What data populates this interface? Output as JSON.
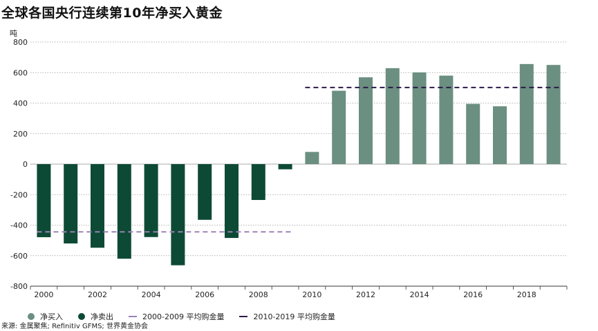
{
  "title": "全球各国央行连续第10年净买入黄金",
  "source": "来源: 金属聚焦; Refinitiv GFMS; 世界黄金协会",
  "chart_data": {
    "type": "bar",
    "unit_label": "吨",
    "categories": [
      "2000",
      "2001",
      "2002",
      "2003",
      "2004",
      "2005",
      "2006",
      "2007",
      "2008",
      "2009",
      "2010",
      "2011",
      "2012",
      "2013",
      "2014",
      "2015",
      "2016",
      "2017",
      "2018",
      "2019"
    ],
    "x_tick_labels": [
      "2000",
      "2002",
      "2004",
      "2006",
      "2008",
      "2010",
      "2012",
      "2014",
      "2016",
      "2018"
    ],
    "values": [
      -479,
      -520,
      -548,
      -620,
      -478,
      -663,
      -365,
      -484,
      -235,
      -34,
      80,
      481,
      569,
      629,
      601,
      580,
      395,
      379,
      656,
      650
    ],
    "ylim": [
      -800,
      800
    ],
    "yticks": [
      800,
      600,
      400,
      200,
      0,
      -200,
      -400,
      -600,
      -800
    ],
    "grid": true,
    "colors": {
      "net_buy": "#6b8f80",
      "net_sell": "#0d4a35",
      "avg_2000_2009": "#9b80b8",
      "avg_2010_2019": "#2a1a4a"
    },
    "averages": [
      {
        "label": "2000-2009 平均购金量",
        "value": -444,
        "from": "2000",
        "to": "2009"
      },
      {
        "label": "2010-2019 平均购金量",
        "value": 502,
        "from": "2010",
        "to": "2019"
      }
    ],
    "legend": {
      "placement": "bottom",
      "net_buy": "净买入",
      "net_sell": "净卖出",
      "avg_2000_2009": "2000-2009 平均购金量",
      "avg_2010_2019": "2010-2019 平均购金量"
    }
  }
}
